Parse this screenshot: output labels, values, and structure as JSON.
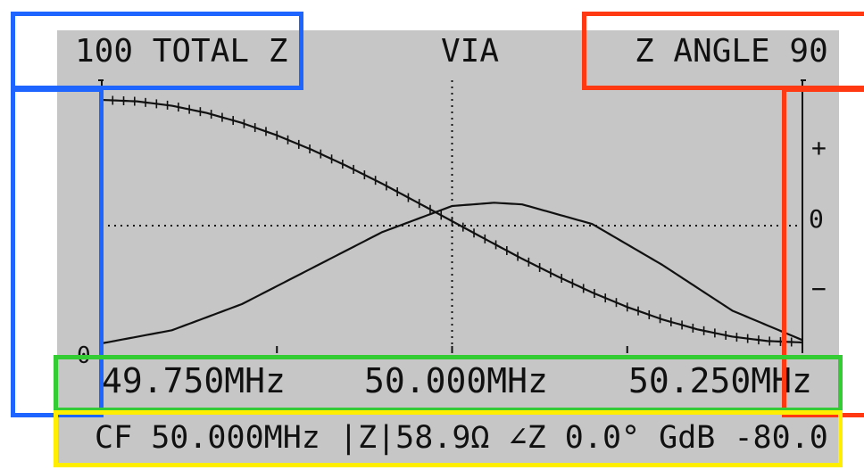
{
  "header": {
    "left_label": "100 TOTAL Z",
    "center_label": "VIA",
    "right_label": "Z ANGLE 90"
  },
  "left_axis": {
    "zero_label": "0"
  },
  "right_axis": {
    "plus_label": "+",
    "zero_label": "0",
    "minus_label": "−"
  },
  "frequency_axis": {
    "left": "49.750MHz",
    "center": "50.000MHz",
    "right": "50.250MHz"
  },
  "status_bar": {
    "text": "CF 50.000MHz |Z|58.9Ω ∠Z 0.0° GdB -80.0"
  },
  "colors": {
    "screen_bg": "#c6c6c6",
    "trace": "#111111",
    "box_blue": "#1e64ff",
    "box_red": "#ff3a12",
    "box_green": "#33cc33",
    "box_yellow": "#ffee00"
  },
  "chart_data": {
    "type": "line",
    "title": "",
    "xlabel": "",
    "ylabel": "",
    "x_ticks": [
      "49.750MHz",
      "50.000MHz",
      "50.250MHz"
    ],
    "xlim": [
      49.75,
      50.25
    ],
    "series": [
      {
        "name": "TOTAL Z",
        "markers": "ticks",
        "x": [
          49.75,
          49.775,
          49.8,
          49.825,
          49.85,
          49.875,
          49.9,
          49.925,
          49.95,
          49.975,
          50.0,
          50.025,
          50.05,
          50.075,
          50.1,
          50.125,
          50.15,
          50.175,
          50.2,
          50.225,
          50.25
        ],
        "y": [
          100,
          99.4,
          97.6,
          94.6,
          90.5,
          85.4,
          79.4,
          72.7,
          65.5,
          57.8,
          50,
          42.2,
          34.5,
          27.3,
          20.6,
          14.6,
          9.5,
          5.4,
          2.4,
          0.6,
          0
        ],
        "ylim": [
          0,
          100
        ]
      },
      {
        "name": "Z ANGLE",
        "markers": "none",
        "x": [
          49.75,
          49.8,
          49.85,
          49.9,
          49.95,
          50.0,
          50.03,
          50.05,
          50.1,
          50.15,
          50.2,
          50.25
        ],
        "y": [
          -72,
          -64,
          -48,
          -26,
          -4,
          12,
          14,
          13,
          1,
          -24,
          -52,
          -70
        ],
        "ylim": [
          -90,
          90
        ]
      }
    ]
  }
}
